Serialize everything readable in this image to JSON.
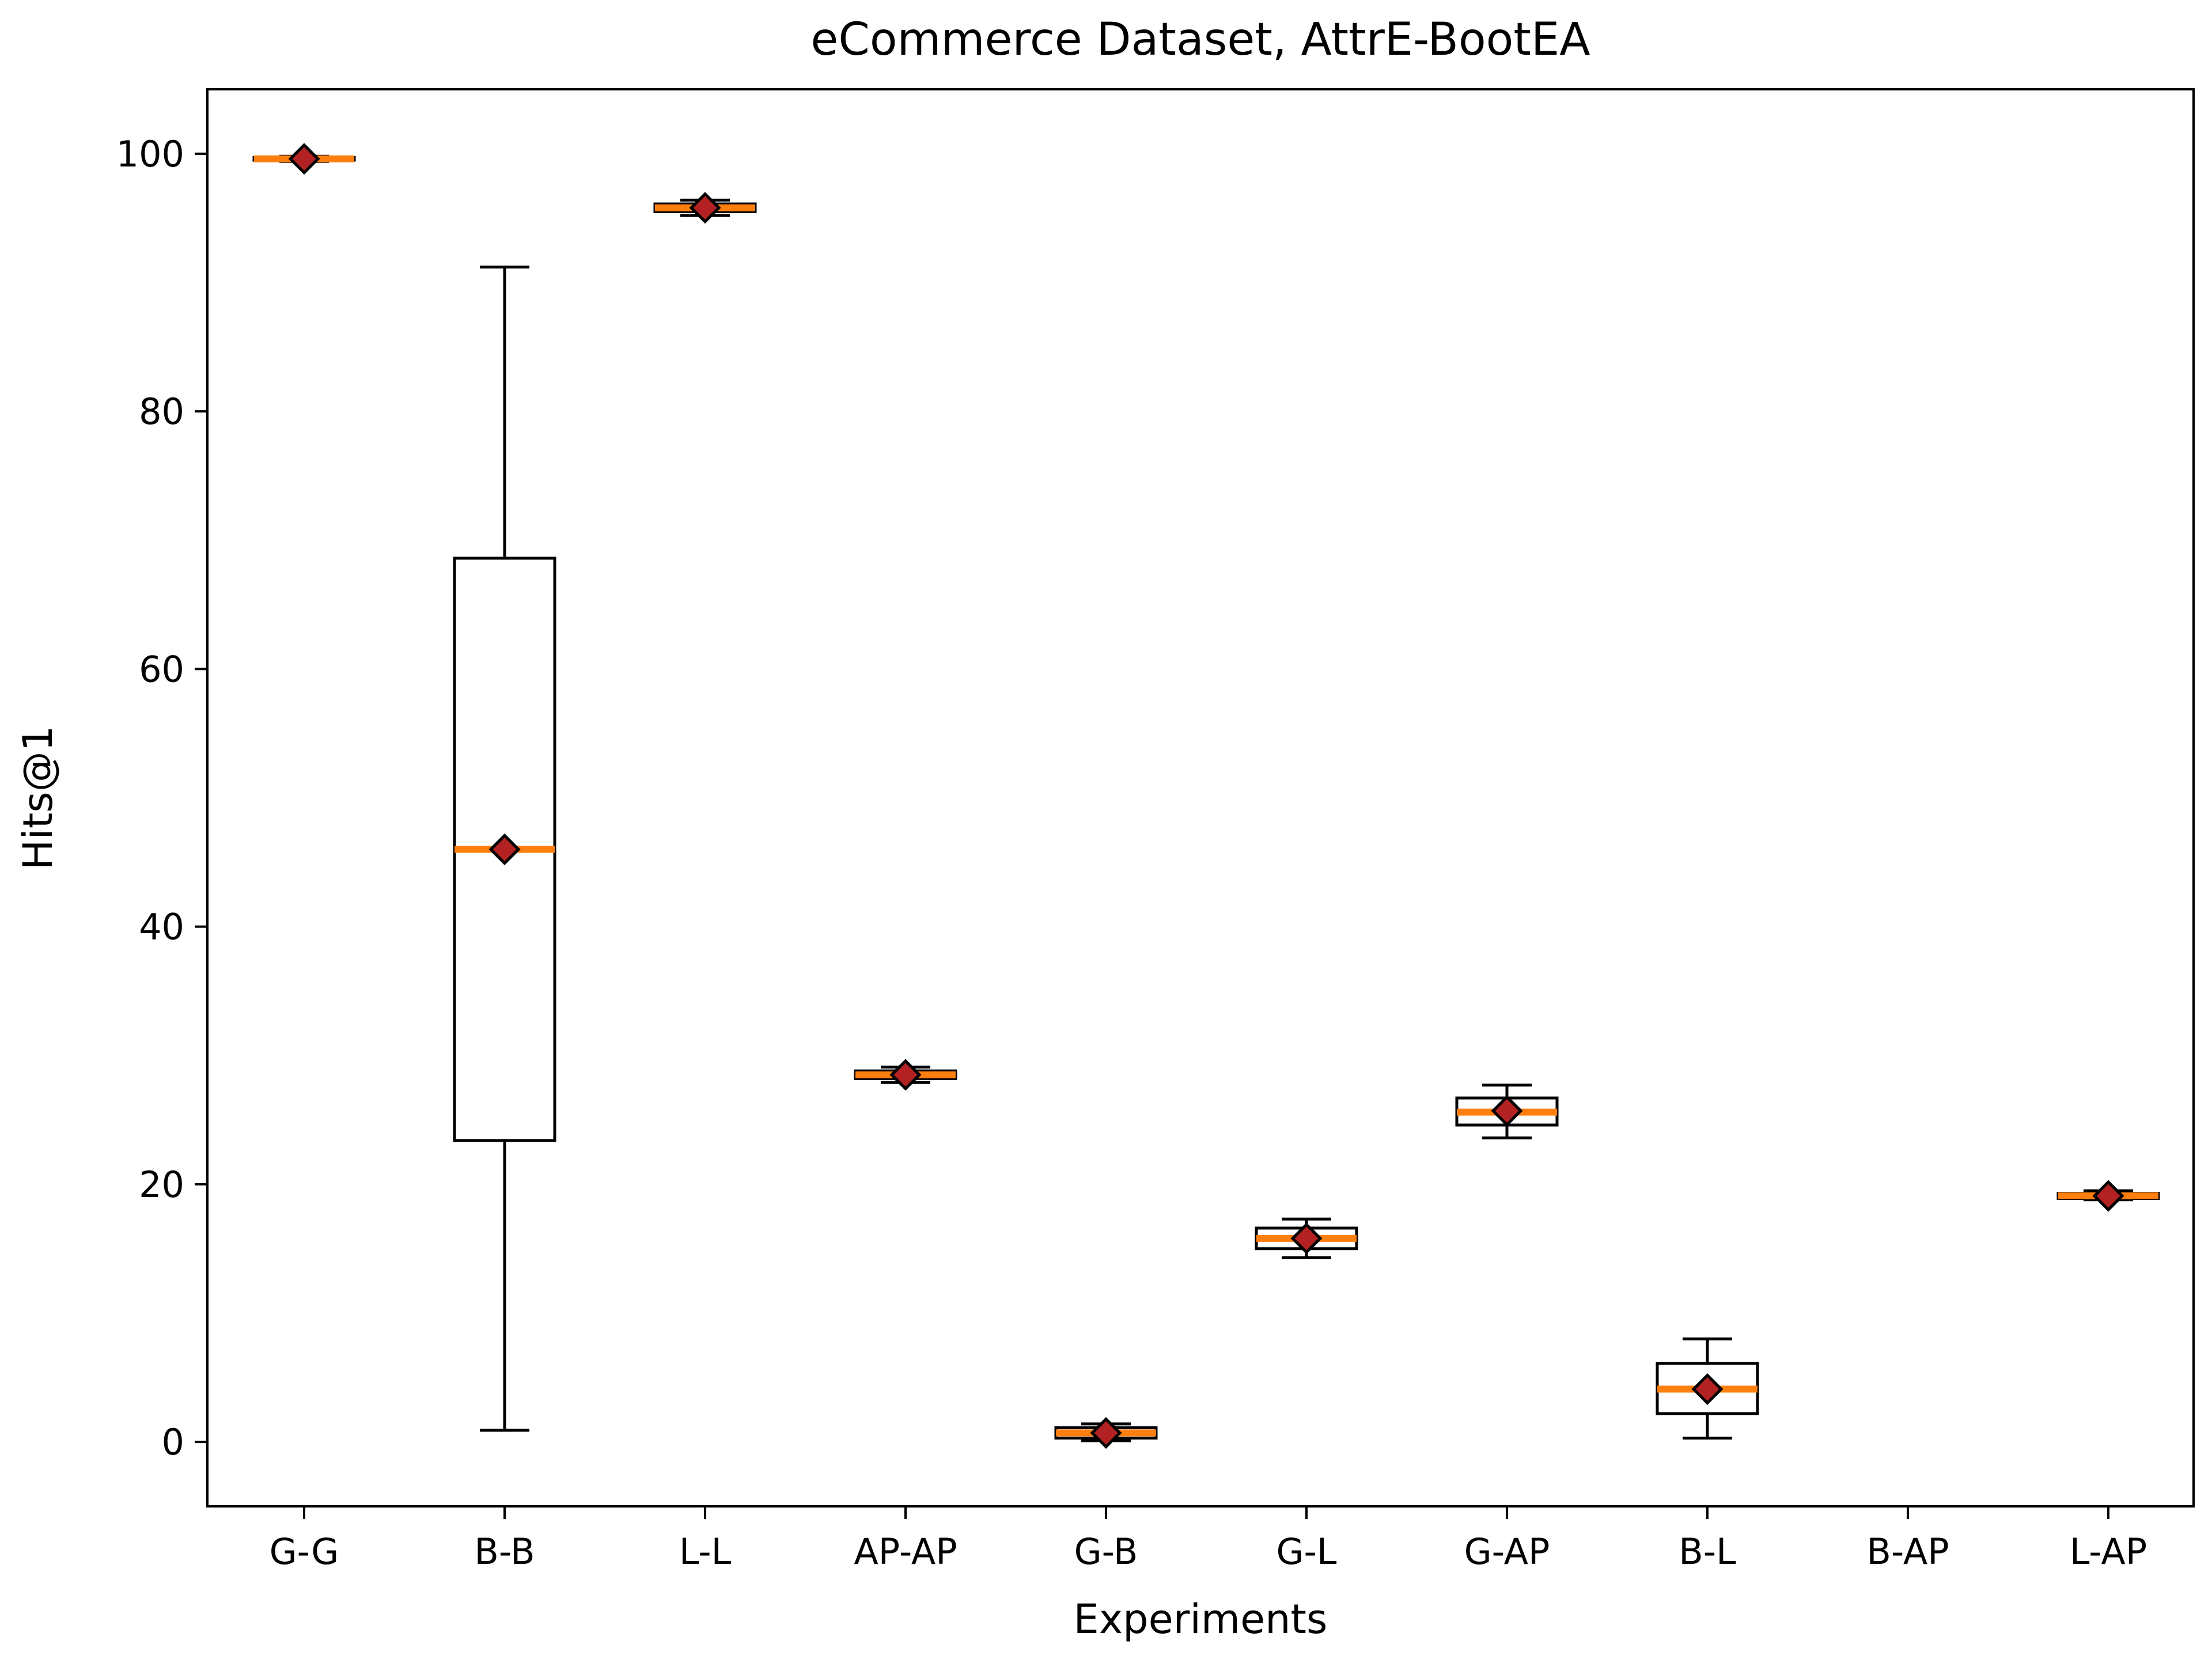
{
  "chart_data": {
    "type": "box",
    "title": "eCommerce Dataset, AttrE-BootEA",
    "xlabel": "Experiments",
    "ylabel": "Hits@1",
    "ylim": [
      -5,
      105
    ],
    "yticks": [
      0,
      20,
      40,
      60,
      80,
      100
    ],
    "categories": [
      "G-G",
      "B-B",
      "L-L",
      "AP-AP",
      "G-B",
      "G-L",
      "G-AP",
      "B-L",
      "B-AP",
      "L-AP"
    ],
    "boxes": [
      {
        "label": "G-G",
        "whislo": 99.4,
        "q1": 99.5,
        "median": 99.6,
        "q3": 99.7,
        "whishi": 99.8,
        "mean": 99.6
      },
      {
        "label": "B-B",
        "whislo": 0.9,
        "q1": 23.4,
        "median": 46.0,
        "q3": 68.6,
        "whishi": 91.2,
        "mean": 46.0
      },
      {
        "label": "L-L",
        "whislo": 95.2,
        "q1": 95.5,
        "median": 95.8,
        "q3": 96.1,
        "whishi": 96.4,
        "mean": 95.8
      },
      {
        "label": "AP-AP",
        "whislo": 27.9,
        "q1": 28.2,
        "median": 28.5,
        "q3": 28.8,
        "whishi": 29.1,
        "mean": 28.5
      },
      {
        "label": "G-B",
        "whislo": 0.1,
        "q1": 0.3,
        "median": 0.7,
        "q3": 1.1,
        "whishi": 1.4,
        "mean": 0.7
      },
      {
        "label": "G-L",
        "whislo": 14.3,
        "q1": 15.0,
        "median": 15.8,
        "q3": 16.6,
        "whishi": 17.3,
        "mean": 15.8
      },
      {
        "label": "G-AP",
        "whislo": 23.6,
        "q1": 24.6,
        "median": 25.6,
        "q3": 26.7,
        "whishi": 27.7,
        "mean": 25.7
      },
      {
        "label": "B-L",
        "whislo": 0.3,
        "q1": 2.2,
        "median": 4.1,
        "q3": 6.1,
        "whishi": 8.0,
        "mean": 4.1
      },
      {
        "label": "B-AP",
        "whislo": null,
        "q1": null,
        "median": null,
        "q3": null,
        "whishi": null,
        "mean": null
      },
      {
        "label": "L-AP",
        "whislo": 18.8,
        "q1": 18.9,
        "median": 19.1,
        "q3": 19.3,
        "whishi": 19.5,
        "mean": 19.1
      }
    ],
    "colors": {
      "box_edge": "#000000",
      "median": "#ff7f0e",
      "mean_fill": "#b22222",
      "mean_edge": "#000000",
      "background": "#ffffff"
    },
    "grid": false,
    "legend": "none"
  }
}
